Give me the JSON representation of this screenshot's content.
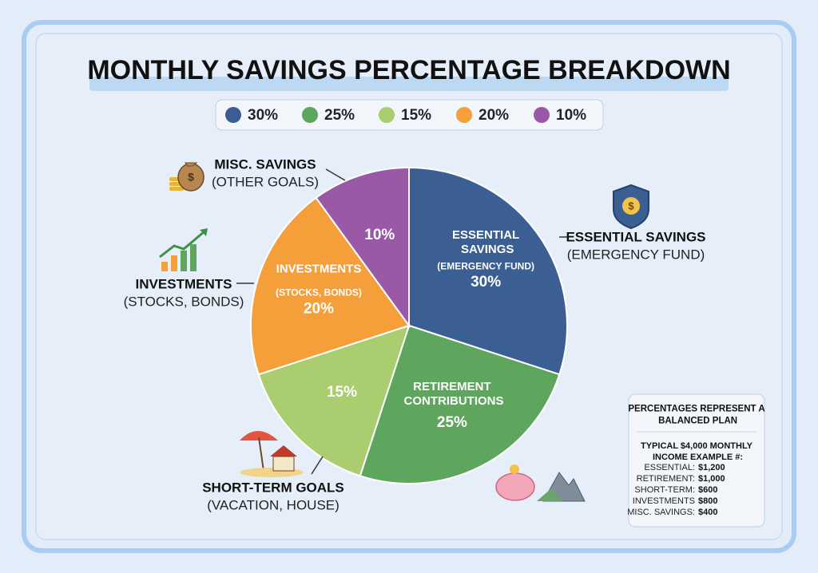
{
  "chart_data": {
    "type": "pie",
    "title": "MONTHLY SAVINGS PERCENTAGE BREAKDOWN",
    "categories": [
      "ESSENTIAL SAVINGS",
      "RETIREMENT CONTRIBUTIONS",
      "SHORT-TERM GOALS",
      "INVESTMENTS",
      "MISC. SAVINGS"
    ],
    "details": [
      "(EMERGENCY FUND)",
      null,
      "(VACATION, HOUSE)",
      "(STOCKS, BONDS)",
      "(OTHER GOALS)"
    ],
    "values": [
      30,
      25,
      15,
      20,
      10
    ],
    "value_labels": [
      "30%",
      "25%",
      "15%",
      "20%",
      "10%"
    ],
    "colors": [
      "#3b5f93",
      "#5ea55d",
      "#a9cd6f",
      "#f59f3a",
      "#9a59a6"
    ],
    "show_inner_name": [
      true,
      true,
      false,
      true,
      false
    ],
    "show_callout": [
      true,
      false,
      true,
      true,
      true
    ],
    "note": {
      "heading": "PERCENTAGES REPRESENT A BALANCED PLAN",
      "subheading": "TYPICAL $4,000 MONTHLY INCOME EXAMPLE #:",
      "rows": [
        [
          "ESSENTIAL:",
          "$1,200"
        ],
        [
          "RETIREMENT:",
          "$1,000"
        ],
        [
          "SHORT-TERM:",
          "$600"
        ],
        [
          "INVESTMENTS",
          "$800"
        ],
        [
          "MISC. SAVINGS:",
          "$400"
        ]
      ]
    }
  }
}
